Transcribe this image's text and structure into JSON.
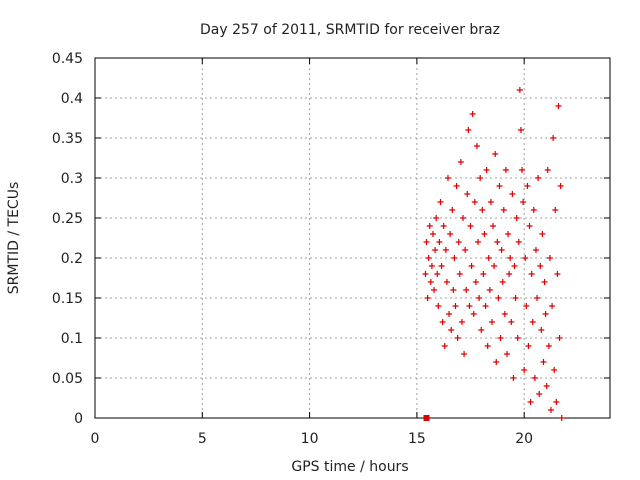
{
  "chart_data": {
    "type": "scatter",
    "title": "Day 257 of 2011, SRMTID for receiver braz",
    "xlabel": "GPS time / hours",
    "ylabel": "SRMTID / TECUs",
    "xlim": [
      0,
      24
    ],
    "ylim": [
      0,
      0.45
    ],
    "xticks": [
      0,
      5,
      10,
      15,
      20
    ],
    "yticks": [
      0,
      0.05,
      0.1,
      0.15,
      0.2,
      0.25,
      0.3,
      0.35,
      0.4,
      0.45
    ],
    "grid": true,
    "marker": "plus",
    "color": "#dd0000",
    "x_range_of_points": [
      15.35,
      21.75
    ],
    "square_marker_point": {
      "x": 15.45,
      "y": 0.0
    },
    "series": [
      {
        "name": "braz",
        "points": [
          [
            15.4,
            0.18
          ],
          [
            15.45,
            0.22
          ],
          [
            15.5,
            0.15
          ],
          [
            15.55,
            0.2
          ],
          [
            15.6,
            0.24
          ],
          [
            15.65,
            0.17
          ],
          [
            15.7,
            0.19
          ],
          [
            15.75,
            0.23
          ],
          [
            15.8,
            0.16
          ],
          [
            15.85,
            0.21
          ],
          [
            15.9,
            0.25
          ],
          [
            15.95,
            0.18
          ],
          [
            16.0,
            0.14
          ],
          [
            16.05,
            0.22
          ],
          [
            16.1,
            0.27
          ],
          [
            16.15,
            0.19
          ],
          [
            16.2,
            0.12
          ],
          [
            16.25,
            0.24
          ],
          [
            16.3,
            0.09
          ],
          [
            16.35,
            0.21
          ],
          [
            16.4,
            0.17
          ],
          [
            16.45,
            0.3
          ],
          [
            16.5,
            0.13
          ],
          [
            16.55,
            0.23
          ],
          [
            16.6,
            0.11
          ],
          [
            16.65,
            0.26
          ],
          [
            16.7,
            0.16
          ],
          [
            16.75,
            0.2
          ],
          [
            16.8,
            0.14
          ],
          [
            16.85,
            0.29
          ],
          [
            16.9,
            0.1
          ],
          [
            16.95,
            0.22
          ],
          [
            17.0,
            0.18
          ],
          [
            17.05,
            0.32
          ],
          [
            17.1,
            0.12
          ],
          [
            17.15,
            0.25
          ],
          [
            17.2,
            0.08
          ],
          [
            17.25,
            0.21
          ],
          [
            17.3,
            0.16
          ],
          [
            17.35,
            0.28
          ],
          [
            17.4,
            0.36
          ],
          [
            17.45,
            0.14
          ],
          [
            17.5,
            0.24
          ],
          [
            17.55,
            0.19
          ],
          [
            17.6,
            0.38
          ],
          [
            17.65,
            0.13
          ],
          [
            17.7,
            0.27
          ],
          [
            17.75,
            0.17
          ],
          [
            17.8,
            0.34
          ],
          [
            17.85,
            0.22
          ],
          [
            17.9,
            0.15
          ],
          [
            17.95,
            0.3
          ],
          [
            18.0,
            0.11
          ],
          [
            18.05,
            0.26
          ],
          [
            18.1,
            0.18
          ],
          [
            18.15,
            0.23
          ],
          [
            18.2,
            0.14
          ],
          [
            18.25,
            0.31
          ],
          [
            18.3,
            0.09
          ],
          [
            18.35,
            0.2
          ],
          [
            18.4,
            0.16
          ],
          [
            18.45,
            0.27
          ],
          [
            18.5,
            0.12
          ],
          [
            18.55,
            0.24
          ],
          [
            18.6,
            0.19
          ],
          [
            18.65,
            0.33
          ],
          [
            18.7,
            0.07
          ],
          [
            18.75,
            0.22
          ],
          [
            18.8,
            0.15
          ],
          [
            18.85,
            0.29
          ],
          [
            18.9,
            0.1
          ],
          [
            18.95,
            0.21
          ],
          [
            19.0,
            0.17
          ],
          [
            19.05,
            0.26
          ],
          [
            19.1,
            0.13
          ],
          [
            19.15,
            0.31
          ],
          [
            19.2,
            0.08
          ],
          [
            19.25,
            0.23
          ],
          [
            19.3,
            0.18
          ],
          [
            19.35,
            0.2
          ],
          [
            19.4,
            0.12
          ],
          [
            19.45,
            0.28
          ],
          [
            19.5,
            0.05
          ],
          [
            19.55,
            0.19
          ],
          [
            19.6,
            0.15
          ],
          [
            19.65,
            0.25
          ],
          [
            19.7,
            0.1
          ],
          [
            19.75,
            0.22
          ],
          [
            19.8,
            0.41
          ],
          [
            19.85,
            0.36
          ],
          [
            19.9,
            0.31
          ],
          [
            19.95,
            0.27
          ],
          [
            20.0,
            0.06
          ],
          [
            20.05,
            0.2
          ],
          [
            20.1,
            0.14
          ],
          [
            20.15,
            0.29
          ],
          [
            20.2,
            0.09
          ],
          [
            20.25,
            0.24
          ],
          [
            20.3,
            0.02
          ],
          [
            20.35,
            0.18
          ],
          [
            20.4,
            0.12
          ],
          [
            20.45,
            0.26
          ],
          [
            20.5,
            0.05
          ],
          [
            20.55,
            0.21
          ],
          [
            20.6,
            0.15
          ],
          [
            20.65,
            0.3
          ],
          [
            20.7,
            0.03
          ],
          [
            20.75,
            0.19
          ],
          [
            20.8,
            0.11
          ],
          [
            20.85,
            0.23
          ],
          [
            20.9,
            0.07
          ],
          [
            20.95,
            0.17
          ],
          [
            21.0,
            0.13
          ],
          [
            21.05,
            0.04
          ],
          [
            21.1,
            0.31
          ],
          [
            21.15,
            0.09
          ],
          [
            21.2,
            0.2
          ],
          [
            21.25,
            0.01
          ],
          [
            21.3,
            0.14
          ],
          [
            21.35,
            0.35
          ],
          [
            21.4,
            0.06
          ],
          [
            21.45,
            0.26
          ],
          [
            21.5,
            0.02
          ],
          [
            21.55,
            0.18
          ],
          [
            21.6,
            0.39
          ],
          [
            21.65,
            0.1
          ],
          [
            21.7,
            0.29
          ],
          [
            21.75,
            0.0
          ]
        ]
      }
    ]
  }
}
